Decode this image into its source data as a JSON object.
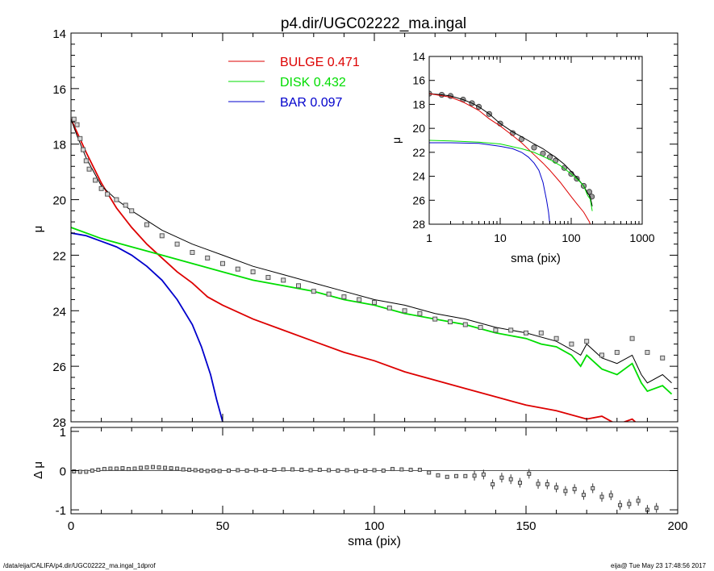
{
  "title": "p4.dir/UGC02222_ma.ingal",
  "footer": {
    "left": "/data/eija/CALIFA/p4.dir/UGC02222_ma.ingal_1dprof",
    "right": "eija@  Tue May 23 17:48:56 2017"
  },
  "colors": {
    "bulge": "#dd0000",
    "disk": "#00dd00",
    "bar": "#0000cc",
    "total": "#000000",
    "data": "#555555"
  },
  "chart_data": [
    {
      "type": "line",
      "panel": "main",
      "xlabel": "",
      "ylabel": "μ",
      "xlim": [
        0,
        200
      ],
      "ylim": [
        28,
        14
      ],
      "y_inverted": true,
      "yticks": [
        14,
        16,
        18,
        20,
        22,
        24,
        26,
        28
      ],
      "legend": [
        {
          "name": "BULGE",
          "value": "0.471",
          "color": "#dd0000"
        },
        {
          "name": "DISK",
          "value": "0.432",
          "color": "#00dd00"
        },
        {
          "name": "BAR",
          "value": "0.097",
          "color": "#0000cc"
        }
      ],
      "legend_position": "top-center",
      "series": [
        {
          "name": "BULGE",
          "color": "#dd0000",
          "x": [
            0,
            5,
            10,
            15,
            20,
            25,
            30,
            35,
            40,
            45,
            50,
            60,
            70,
            80,
            90,
            100,
            110,
            120,
            130,
            140,
            150,
            160,
            170,
            175,
            180,
            185,
            188
          ],
          "y": [
            17.1,
            18.3,
            19.4,
            20.3,
            21.0,
            21.6,
            22.1,
            22.6,
            23.0,
            23.5,
            23.8,
            24.3,
            24.7,
            25.1,
            25.5,
            25.8,
            26.2,
            26.5,
            26.8,
            27.1,
            27.4,
            27.6,
            27.9,
            27.8,
            28.1,
            27.9,
            28.2
          ]
        },
        {
          "name": "DISK",
          "color": "#00dd00",
          "x": [
            0,
            10,
            20,
            30,
            40,
            50,
            60,
            70,
            80,
            90,
            100,
            110,
            120,
            130,
            140,
            150,
            155,
            160,
            165,
            168,
            170,
            175,
            180,
            185,
            188,
            190,
            195,
            198
          ],
          "y": [
            21.0,
            21.4,
            21.7,
            22.0,
            22.3,
            22.6,
            22.9,
            23.1,
            23.3,
            23.6,
            23.8,
            24.1,
            24.3,
            24.5,
            24.8,
            25.0,
            25.2,
            25.3,
            25.6,
            26.0,
            25.6,
            26.1,
            26.3,
            25.9,
            26.6,
            26.9,
            26.7,
            27.0
          ]
        },
        {
          "name": "BAR",
          "color": "#0000cc",
          "x": [
            0,
            5,
            10,
            15,
            20,
            25,
            30,
            35,
            40,
            43,
            46,
            48,
            50
          ],
          "y": [
            21.2,
            21.3,
            21.5,
            21.7,
            22.0,
            22.4,
            22.9,
            23.6,
            24.5,
            25.3,
            26.3,
            27.2,
            28.0
          ]
        },
        {
          "name": "total",
          "color": "#000000",
          "x": [
            0,
            2,
            5,
            10,
            15,
            20,
            30,
            40,
            50,
            60,
            70,
            80,
            90,
            100,
            110,
            120,
            130,
            140,
            150,
            160,
            165,
            168,
            170,
            175,
            180,
            185,
            188,
            190,
            195,
            198
          ],
          "y": [
            17.1,
            17.7,
            18.5,
            19.5,
            20.0,
            20.4,
            21.1,
            21.6,
            22.0,
            22.4,
            22.7,
            23.0,
            23.3,
            23.6,
            23.8,
            24.1,
            24.3,
            24.6,
            24.8,
            25.1,
            25.4,
            25.6,
            25.2,
            25.7,
            25.9,
            25.6,
            26.3,
            26.6,
            26.3,
            26.6
          ]
        },
        {
          "name": "data",
          "color": "#555555",
          "marker": "square",
          "x": [
            1,
            2,
            3,
            4,
            5,
            6,
            8,
            10,
            12,
            15,
            18,
            20,
            25,
            30,
            35,
            40,
            45,
            50,
            55,
            60,
            65,
            70,
            75,
            80,
            85,
            90,
            95,
            100,
            105,
            110,
            115,
            120,
            125,
            130,
            135,
            140,
            145,
            150,
            155,
            160,
            165,
            170,
            175,
            180,
            185,
            190,
            195
          ],
          "y": [
            17.1,
            17.3,
            17.8,
            18.2,
            18.6,
            18.9,
            19.3,
            19.6,
            19.8,
            20.0,
            20.2,
            20.4,
            20.9,
            21.3,
            21.6,
            21.9,
            22.1,
            22.3,
            22.5,
            22.6,
            22.8,
            22.9,
            23.1,
            23.3,
            23.4,
            23.5,
            23.6,
            23.7,
            23.9,
            24.0,
            24.1,
            24.3,
            24.4,
            24.5,
            24.6,
            24.7,
            24.7,
            24.8,
            24.8,
            25.0,
            25.2,
            25.1,
            25.6,
            25.5,
            25.0,
            25.5,
            25.7
          ]
        }
      ]
    },
    {
      "type": "scatter",
      "panel": "residual",
      "xlabel": "sma (pix)",
      "ylabel": "Δ μ",
      "xlim": [
        0,
        200
      ],
      "ylim": [
        -1.1,
        1.1
      ],
      "xticks": [
        0,
        50,
        100,
        150,
        200
      ],
      "yticks": [
        -1,
        0,
        1
      ],
      "reference_line": 0,
      "x": [
        1,
        3,
        5,
        7,
        9,
        11,
        13,
        15,
        17,
        19,
        21,
        23,
        25,
        27,
        29,
        31,
        33,
        35,
        37,
        39,
        41,
        43,
        45,
        47,
        49,
        52,
        55,
        58,
        61,
        64,
        67,
        70,
        73,
        76,
        79,
        82,
        85,
        88,
        91,
        94,
        97,
        100,
        103,
        106,
        109,
        112,
        115,
        118,
        121,
        124,
        127,
        130,
        133,
        136,
        139,
        142,
        145,
        148,
        151,
        154,
        157,
        160,
        163,
        166,
        169,
        172,
        175,
        178,
        181,
        184,
        187,
        190,
        193
      ],
      "y": [
        -0.02,
        -0.03,
        -0.03,
        0.0,
        0.02,
        0.04,
        0.05,
        0.05,
        0.06,
        0.04,
        0.05,
        0.07,
        0.08,
        0.09,
        0.08,
        0.07,
        0.06,
        0.05,
        0.03,
        0.02,
        0.01,
        0.0,
        -0.01,
        0.0,
        -0.01,
        0.0,
        0.01,
        0.0,
        0.01,
        0.0,
        0.02,
        0.03,
        0.03,
        0.02,
        0.01,
        0.02,
        0.01,
        0.0,
        0.01,
        -0.01,
        0.0,
        0.01,
        0.0,
        0.04,
        0.03,
        0.02,
        0.02,
        -0.05,
        -0.12,
        -0.16,
        -0.14,
        -0.14,
        -0.13,
        -0.1,
        -0.35,
        -0.18,
        -0.22,
        -0.31,
        -0.08,
        -0.34,
        -0.35,
        -0.43,
        -0.52,
        -0.47,
        -0.62,
        -0.45,
        -0.67,
        -0.63,
        -0.88,
        -0.85,
        -0.77,
        -1.0,
        -0.95
      ]
    },
    {
      "type": "line",
      "panel": "inset",
      "xlabel": "sma (pix)",
      "ylabel": "μ",
      "xscale": "log",
      "xlim": [
        1,
        1000
      ],
      "ylim": [
        28,
        14
      ],
      "y_inverted": true,
      "xticks": [
        1,
        10,
        100,
        1000
      ],
      "yticks": [
        14,
        16,
        18,
        20,
        22,
        24,
        26,
        28
      ],
      "series": [
        {
          "name": "data",
          "color": "#555555",
          "marker": "circle",
          "x": [
            1,
            1.5,
            2,
            3,
            4,
            5,
            7,
            10,
            15,
            20,
            30,
            40,
            50,
            60,
            80,
            100,
            120,
            150,
            180,
            195
          ],
          "y": [
            17.1,
            17.2,
            17.3,
            17.6,
            17.9,
            18.2,
            18.8,
            19.6,
            20.4,
            20.9,
            21.6,
            22.1,
            22.4,
            22.7,
            23.3,
            23.8,
            24.2,
            24.8,
            25.3,
            25.7
          ]
        },
        {
          "name": "total",
          "color": "#000000",
          "x": [
            1,
            1.5,
            2,
            3,
            4,
            5,
            7,
            10,
            15,
            20,
            30,
            40,
            50,
            60,
            80,
            100,
            120,
            150,
            170,
            185,
            198
          ],
          "y": [
            17.1,
            17.2,
            17.3,
            17.6,
            17.9,
            18.2,
            18.8,
            19.6,
            20.3,
            20.7,
            21.3,
            21.7,
            22.1,
            22.4,
            23.0,
            23.6,
            24.1,
            24.8,
            25.4,
            25.7,
            26.5
          ]
        },
        {
          "name": "BULGE",
          "color": "#dd0000",
          "x": [
            1,
            2,
            3,
            5,
            7,
            10,
            15,
            20,
            30,
            40,
            50,
            70,
            100,
            120,
            150,
            180,
            190
          ],
          "y": [
            17.1,
            17.4,
            17.8,
            18.5,
            19.2,
            19.8,
            20.6,
            21.2,
            22.2,
            22.9,
            23.5,
            24.5,
            25.7,
            26.3,
            27.0,
            27.8,
            28.2
          ]
        },
        {
          "name": "DISK",
          "color": "#00dd00",
          "x": [
            1,
            2,
            5,
            10,
            20,
            30,
            50,
            70,
            100,
            130,
            150,
            170,
            185,
            198
          ],
          "y": [
            21.0,
            21.05,
            21.15,
            21.3,
            21.7,
            22.0,
            22.6,
            23.1,
            23.8,
            24.4,
            24.8,
            25.6,
            25.9,
            26.9
          ]
        },
        {
          "name": "BAR",
          "color": "#0000cc",
          "x": [
            1,
            2,
            5,
            10,
            15,
            20,
            25,
            30,
            35,
            40,
            45,
            48,
            50
          ],
          "y": [
            21.2,
            21.2,
            21.25,
            21.5,
            21.7,
            22.0,
            22.4,
            22.9,
            23.5,
            24.5,
            26.0,
            27.0,
            28.0
          ]
        }
      ]
    }
  ]
}
